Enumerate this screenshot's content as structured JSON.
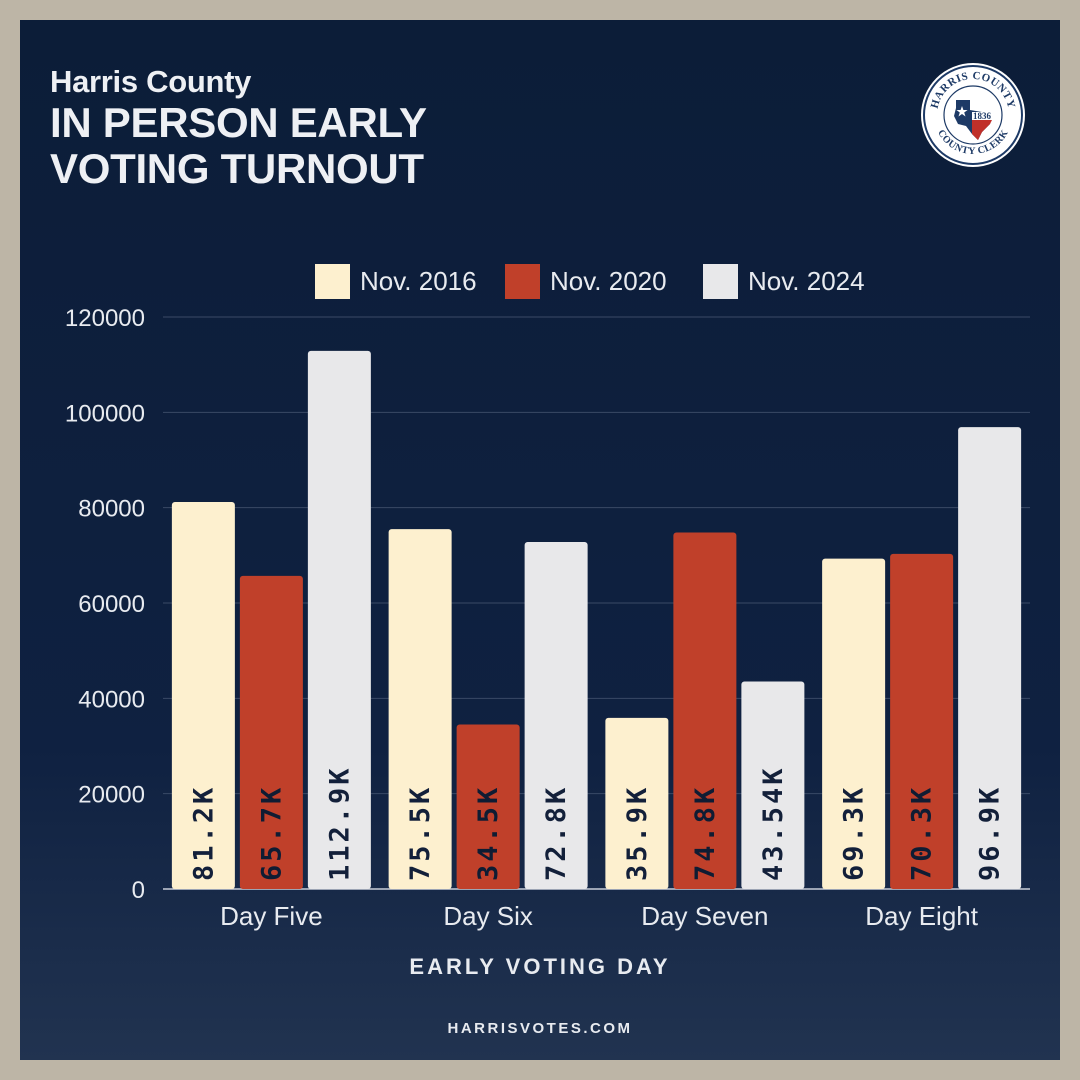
{
  "header": {
    "subtitle": "Harris County",
    "title_line1": "IN PERSON EARLY",
    "title_line2": "VOTING TURNOUT"
  },
  "seal": {
    "top_text": "HARRIS COUNTY",
    "bottom_text": "COUNTY CLERK",
    "year": "1836"
  },
  "footer": {
    "url": "HARRISVOTES.COM"
  },
  "colors": {
    "series_2016": "#fdf0cf",
    "series_2020": "#c0402a",
    "series_2024": "#e8e8ea",
    "label_text": "#13203a",
    "background": "#0c1d38"
  },
  "chart_data": {
    "type": "bar",
    "title": "IN PERSON EARLY VOTING TURNOUT",
    "xlabel": "EARLY VOTING DAY",
    "ylabel": "",
    "ylim": [
      0,
      120000
    ],
    "yticks": [
      0,
      20000,
      40000,
      60000,
      80000,
      100000,
      120000
    ],
    "grid": true,
    "legend_position": "top",
    "categories": [
      "Day Five",
      "Day Six",
      "Day Seven",
      "Day Eight"
    ],
    "series": [
      {
        "name": "Nov. 2016",
        "values": [
          81200,
          75500,
          35900,
          69300
        ],
        "labels": [
          "81.2K",
          "75.5K",
          "35.9K",
          "69.3K"
        ]
      },
      {
        "name": "Nov. 2020",
        "values": [
          65700,
          34500,
          74800,
          70300
        ],
        "labels": [
          "65.7K",
          "34.5K",
          "74.8K",
          "70.3K"
        ]
      },
      {
        "name": "Nov. 2024",
        "values": [
          112900,
          72800,
          43540,
          96900
        ],
        "labels": [
          "112.9K",
          "72.8K",
          "43.54K",
          "96.9K"
        ]
      }
    ]
  }
}
